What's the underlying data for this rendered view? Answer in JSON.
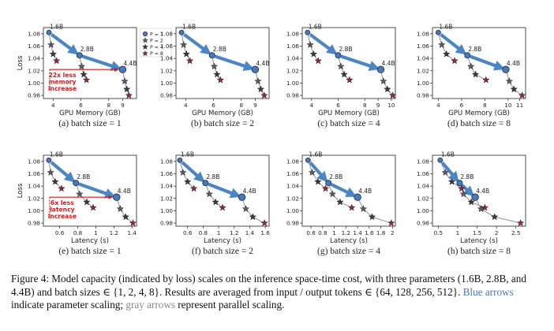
{
  "figure": {
    "caption": {
      "label": "Figure 4:",
      "part1": "Model capacity (indicated by loss) scales on the inference space-time cost, with three parameters (1.6B, 2.8B, and 4.4B) and batch sizes ∈ {1, 2, 4, 8}. Results are averaged from input / output tokens ∈ {64, 128, 256, 512}.",
      "blue_text": "Blue arrows",
      "part2": "indicate parameter scaling;",
      "gray_text": "gray arrows",
      "part3": "represent parallel scaling."
    },
    "legend": {
      "entries": [
        "P = 1",
        "P = 2",
        "P = 4",
        "P = 8"
      ],
      "placement": "top-right of panel (a)"
    },
    "colors": {
      "P1": "#4a79b7",
      "P2": "#5c5870",
      "P4": "#3f3446",
      "P8": "#8a2a3a",
      "blue_arrow": "#4a86c5",
      "gray_arrow": "#9a9a9a",
      "annotation": "#cc1e1e"
    }
  },
  "chart_data": [
    {
      "type": "scatter",
      "id": "a",
      "subtitle": "(a) batch size = 1",
      "xlabel": "GPU Memory (GB)",
      "ylabel": "Loss",
      "xlim": [
        3.3,
        10.0
      ],
      "ylim": [
        0.975,
        1.09
      ],
      "xticks": [
        4,
        6,
        8,
        9
      ],
      "yticks": [
        0.98,
        1.0,
        1.02,
        1.04,
        1.06,
        1.08
      ],
      "models": [
        {
          "name": "1.6B",
          "points": [
            [
              3.7,
              1.082
            ],
            [
              3.85,
              1.062
            ],
            [
              4.0,
              1.047
            ],
            [
              4.25,
              1.036
            ]
          ]
        },
        {
          "name": "2.8B",
          "points": [
            [
              5.9,
              1.045
            ],
            [
              6.05,
              1.027
            ],
            [
              6.2,
              1.014
            ],
            [
              6.4,
              1.005
            ]
          ]
        },
        {
          "name": "4.4B",
          "points": [
            [
              9.0,
              1.022
            ],
            [
              9.15,
              1.003
            ],
            [
              9.3,
              0.99
            ],
            [
              9.45,
              0.98
            ]
          ]
        }
      ],
      "annotation": {
        "text_lines": [
          "22x less",
          "memory",
          "increase"
        ]
      }
    },
    {
      "type": "scatter",
      "id": "b",
      "subtitle": "(b) batch size = 2",
      "xlabel": "GPU Memory (GB)",
      "ylabel": "",
      "xlim": [
        3.3,
        10.0
      ],
      "ylim": [
        0.975,
        1.09
      ],
      "xticks": [
        4,
        6,
        8,
        9
      ],
      "yticks": [
        0.98,
        1.0,
        1.02,
        1.04,
        1.06,
        1.08
      ],
      "models": [
        {
          "name": "1.6B",
          "points": [
            [
              3.7,
              1.082
            ],
            [
              3.85,
              1.062
            ],
            [
              4.05,
              1.047
            ],
            [
              4.3,
              1.036
            ]
          ]
        },
        {
          "name": "2.8B",
          "points": [
            [
              5.9,
              1.045
            ],
            [
              6.05,
              1.027
            ],
            [
              6.25,
              1.014
            ],
            [
              6.5,
              1.005
            ]
          ]
        },
        {
          "name": "4.4B",
          "points": [
            [
              9.0,
              1.022
            ],
            [
              9.2,
              1.003
            ],
            [
              9.4,
              0.99
            ],
            [
              9.65,
              0.98
            ]
          ]
        }
      ]
    },
    {
      "type": "scatter",
      "id": "c",
      "subtitle": "(c) batch size = 4",
      "xlabel": "GPU Memory (GB)",
      "ylabel": "",
      "xlim": [
        3.3,
        10.3
      ],
      "ylim": [
        0.975,
        1.09
      ],
      "xticks": [
        4,
        6,
        8,
        9,
        10
      ],
      "yticks": [
        0.98,
        1.0,
        1.02,
        1.04,
        1.06,
        1.08
      ],
      "models": [
        {
          "name": "1.6B",
          "points": [
            [
              3.7,
              1.082
            ],
            [
              3.9,
              1.062
            ],
            [
              4.15,
              1.047
            ],
            [
              4.5,
              1.036
            ]
          ]
        },
        {
          "name": "2.8B",
          "points": [
            [
              6.0,
              1.045
            ],
            [
              6.2,
              1.027
            ],
            [
              6.45,
              1.014
            ],
            [
              6.85,
              1.005
            ]
          ]
        },
        {
          "name": "4.4B",
          "points": [
            [
              9.2,
              1.022
            ],
            [
              9.4,
              1.003
            ],
            [
              9.7,
              0.99
            ],
            [
              10.1,
              0.98
            ]
          ]
        }
      ]
    },
    {
      "type": "scatter",
      "id": "d",
      "subtitle": "(d) batch size = 8",
      "xlabel": "GPU Memory (GB)",
      "ylabel": "",
      "xlim": [
        3.5,
        11.5
      ],
      "ylim": [
        0.975,
        1.09
      ],
      "xticks": [
        4,
        6,
        8,
        10,
        11
      ],
      "yticks": [
        0.98,
        1.0,
        1.02,
        1.04,
        1.06,
        1.08
      ],
      "models": [
        {
          "name": "1.6B",
          "points": [
            [
              4.0,
              1.082
            ],
            [
              4.3,
              1.062
            ],
            [
              4.7,
              1.047
            ],
            [
              5.4,
              1.036
            ]
          ]
        },
        {
          "name": "2.8B",
          "points": [
            [
              6.5,
              1.045
            ],
            [
              6.8,
              1.027
            ],
            [
              7.2,
              1.014
            ],
            [
              8.1,
              1.005
            ]
          ]
        },
        {
          "name": "4.4B",
          "points": [
            [
              9.8,
              1.022
            ],
            [
              10.1,
              1.003
            ],
            [
              10.5,
              0.99
            ],
            [
              11.2,
              0.98
            ]
          ]
        }
      ]
    },
    {
      "type": "scatter",
      "id": "e",
      "subtitle": "(e) batch size = 1",
      "xlabel": "Latency (s)",
      "ylabel": "Loss",
      "xlim": [
        0.42,
        1.45
      ],
      "ylim": [
        0.975,
        1.09
      ],
      "xticks": [
        0.6,
        0.8,
        1.0,
        1.2,
        1.4
      ],
      "yticks": [
        0.98,
        1.0,
        1.02,
        1.04,
        1.06,
        1.08
      ],
      "models": [
        {
          "name": "1.6B",
          "points": [
            [
              0.48,
              1.082
            ],
            [
              0.5,
              1.062
            ],
            [
              0.55,
              1.047
            ],
            [
              0.62,
              1.036
            ]
          ]
        },
        {
          "name": "2.8B",
          "points": [
            [
              0.78,
              1.045
            ],
            [
              0.82,
              1.027
            ],
            [
              0.9,
              1.014
            ],
            [
              0.97,
              1.005
            ]
          ]
        },
        {
          "name": "4.4B",
          "points": [
            [
              1.23,
              1.022
            ],
            [
              1.27,
              1.003
            ],
            [
              1.33,
              0.99
            ],
            [
              1.41,
              0.98
            ]
          ]
        }
      ],
      "annotation": {
        "text_lines": [
          "6x less",
          "latency",
          "increase"
        ]
      }
    },
    {
      "type": "scatter",
      "id": "f",
      "subtitle": "(f) batch size = 2",
      "xlabel": "Latency (s)",
      "ylabel": "",
      "xlim": [
        0.45,
        1.65
      ],
      "ylim": [
        0.975,
        1.09
      ],
      "xticks": [
        0.6,
        0.8,
        1.0,
        1.2,
        1.4,
        1.6
      ],
      "yticks": [
        0.98,
        1.0,
        1.02,
        1.04,
        1.06,
        1.08
      ],
      "models": [
        {
          "name": "1.6B",
          "points": [
            [
              0.5,
              1.082
            ],
            [
              0.54,
              1.062
            ],
            [
              0.6,
              1.047
            ],
            [
              0.68,
              1.036
            ]
          ]
        },
        {
          "name": "2.8B",
          "points": [
            [
              0.83,
              1.045
            ],
            [
              0.88,
              1.027
            ],
            [
              0.96,
              1.014
            ],
            [
              1.05,
              1.005
            ]
          ]
        },
        {
          "name": "4.4B",
          "points": [
            [
              1.3,
              1.022
            ],
            [
              1.35,
              1.003
            ],
            [
              1.44,
              0.99
            ],
            [
              1.59,
              0.98
            ]
          ]
        }
      ]
    },
    {
      "type": "scatter",
      "id": "g",
      "subtitle": "(g) batch size = 4",
      "xlabel": "Latency (s)",
      "ylabel": "",
      "xlim": [
        0.45,
        2.05
      ],
      "ylim": [
        0.975,
        1.09
      ],
      "xticks": [
        0.6,
        0.8,
        1.0,
        1.2,
        1.4,
        1.6,
        1.8,
        2.0
      ],
      "yticks": [
        0.98,
        1.0,
        1.02,
        1.04,
        1.06,
        1.08
      ],
      "models": [
        {
          "name": "1.6B",
          "points": [
            [
              0.55,
              1.082
            ],
            [
              0.62,
              1.062
            ],
            [
              0.72,
              1.047
            ],
            [
              0.85,
              1.036
            ]
          ]
        },
        {
          "name": "2.8B",
          "points": [
            [
              0.9,
              1.045
            ],
            [
              0.97,
              1.027
            ],
            [
              1.1,
              1.014
            ],
            [
              1.3,
              1.005
            ]
          ]
        },
        {
          "name": "4.4B",
          "points": [
            [
              1.4,
              1.022
            ],
            [
              1.5,
              1.003
            ],
            [
              1.65,
              0.99
            ],
            [
              1.98,
              0.98
            ]
          ]
        }
      ]
    },
    {
      "type": "scatter",
      "id": "h",
      "subtitle": "(h) batch size = 8",
      "xlabel": "Latency (s)",
      "ylabel": "",
      "xlim": [
        0.35,
        2.75
      ],
      "ylim": [
        0.975,
        1.09
      ],
      "xticks": [
        0.5,
        1.0,
        1.5,
        2.0,
        2.5
      ],
      "yticks": [
        0.98,
        1.0,
        1.02,
        1.04,
        1.06,
        1.08
      ],
      "models": [
        {
          "name": "1.6B",
          "points": [
            [
              0.55,
              1.082
            ],
            [
              0.68,
              1.062
            ],
            [
              0.85,
              1.047
            ],
            [
              1.1,
              1.036
            ]
          ]
        },
        {
          "name": "2.8B",
          "points": [
            [
              1.05,
              1.045
            ],
            [
              1.15,
              1.027
            ],
            [
              1.35,
              1.014
            ],
            [
              1.7,
              1.005
            ]
          ]
        },
        {
          "name": "4.4B",
          "points": [
            [
              1.45,
              1.022
            ],
            [
              1.6,
              1.003
            ],
            [
              1.95,
              0.99
            ],
            [
              2.62,
              0.98
            ]
          ]
        }
      ]
    }
  ]
}
